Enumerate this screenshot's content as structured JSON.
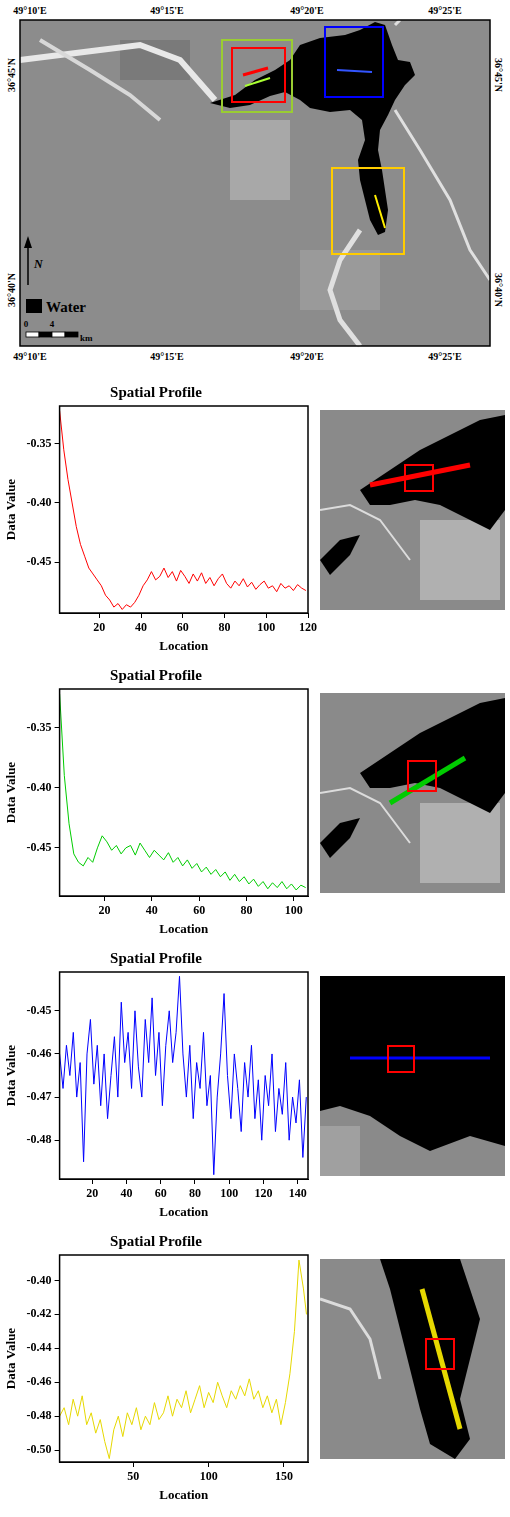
{
  "map": {
    "top_labels": [
      "49°10'E",
      "49°15'E",
      "49°20'E",
      "49°25'E"
    ],
    "bottom_labels": [
      "49°10'E",
      "49°15'E",
      "49°20'E",
      "49°25'E"
    ],
    "left_labels": [
      "36°45'N",
      "36°40'N"
    ],
    "right_labels": [
      "36°45'N",
      "36°40'N"
    ],
    "north": "N",
    "legend_label": "Water",
    "scale_ticks": [
      0,
      4
    ],
    "scale_unit": "km"
  },
  "chart_data": [
    {
      "type": "line",
      "title": "Spatial Profile",
      "x_label": "Location",
      "y_label": "Data Value",
      "color": "#ff0000",
      "grid": false,
      "xlim": [
        1,
        120
      ],
      "ylim": [
        -0.493,
        -0.318
      ],
      "xticks": [
        20,
        40,
        60,
        80,
        100,
        120
      ],
      "yticks": [
        -0.35,
        {
          "value": -0.4,
          "label": "-0.40"
        },
        -0.45
      ],
      "x": [
        1,
        3,
        5,
        7,
        9,
        11,
        13,
        15,
        17,
        19,
        21,
        23,
        25,
        27,
        29,
        31,
        33,
        35,
        37,
        39,
        41,
        43,
        45,
        47,
        49,
        51,
        53,
        55,
        57,
        59,
        61,
        63,
        65,
        67,
        69,
        71,
        73,
        75,
        77,
        79,
        81,
        83,
        85,
        87,
        89,
        91,
        93,
        95,
        97,
        99,
        101,
        103,
        105,
        107,
        109,
        111,
        113,
        115,
        117,
        119
      ],
      "values": [
        -0.322,
        -0.355,
        -0.38,
        -0.4,
        -0.42,
        -0.435,
        -0.445,
        -0.455,
        -0.46,
        -0.465,
        -0.47,
        -0.478,
        -0.482,
        -0.488,
        -0.485,
        -0.49,
        -0.486,
        -0.488,
        -0.484,
        -0.478,
        -0.47,
        -0.465,
        -0.458,
        -0.465,
        -0.462,
        -0.455,
        -0.463,
        -0.458,
        -0.466,
        -0.457,
        -0.462,
        -0.468,
        -0.46,
        -0.466,
        -0.459,
        -0.468,
        -0.463,
        -0.47,
        -0.464,
        -0.46,
        -0.468,
        -0.472,
        -0.466,
        -0.47,
        -0.464,
        -0.471,
        -0.467,
        -0.473,
        -0.469,
        -0.466,
        -0.472,
        -0.47,
        -0.475,
        -0.468,
        -0.472,
        -0.47,
        -0.474,
        -0.469,
        -0.472,
        -0.474
      ]
    },
    {
      "type": "line",
      "title": "Spatial Profile",
      "x_label": "Location",
      "y_label": "Data Value",
      "color": "#00cc00",
      "grid": false,
      "xlim": [
        1,
        106
      ],
      "ylim": [
        -0.49,
        -0.318
      ],
      "xticks": [
        20,
        40,
        60,
        80,
        100
      ],
      "yticks": [
        -0.35,
        {
          "value": -0.4,
          "label": "-0.40"
        },
        -0.45
      ],
      "x": [
        1,
        3,
        5,
        7,
        9,
        11,
        13,
        15,
        17,
        19,
        21,
        23,
        25,
        27,
        29,
        31,
        33,
        35,
        37,
        39,
        41,
        43,
        45,
        47,
        49,
        51,
        53,
        55,
        57,
        59,
        61,
        63,
        65,
        67,
        69,
        71,
        73,
        75,
        77,
        79,
        81,
        83,
        85,
        87,
        89,
        91,
        93,
        95,
        97,
        99,
        101,
        103,
        105
      ],
      "values": [
        -0.322,
        -0.39,
        -0.43,
        -0.455,
        -0.462,
        -0.465,
        -0.458,
        -0.462,
        -0.45,
        -0.44,
        -0.445,
        -0.452,
        -0.448,
        -0.455,
        -0.45,
        -0.448,
        -0.456,
        -0.446,
        -0.452,
        -0.458,
        -0.452,
        -0.456,
        -0.46,
        -0.454,
        -0.462,
        -0.458,
        -0.465,
        -0.46,
        -0.467,
        -0.463,
        -0.47,
        -0.466,
        -0.472,
        -0.468,
        -0.474,
        -0.47,
        -0.477,
        -0.472,
        -0.478,
        -0.474,
        -0.48,
        -0.476,
        -0.482,
        -0.478,
        -0.484,
        -0.479,
        -0.483,
        -0.478,
        -0.484,
        -0.48,
        -0.485,
        -0.481,
        -0.483
      ]
    },
    {
      "type": "line",
      "title": "Spatial Profile",
      "x_label": "Location",
      "y_label": "Data Value",
      "color": "#0000ff",
      "grid": false,
      "xlim": [
        1,
        146
      ],
      "ylim": [
        -0.489,
        -0.441
      ],
      "xticks": [
        20,
        40,
        60,
        80,
        100,
        120,
        140
      ],
      "yticks": [
        -0.45,
        -0.46,
        -0.47,
        -0.48
      ],
      "x": [
        1,
        3,
        5,
        7,
        9,
        11,
        13,
        15,
        17,
        19,
        21,
        23,
        25,
        27,
        29,
        31,
        33,
        35,
        37,
        39,
        41,
        43,
        45,
        47,
        49,
        51,
        53,
        55,
        57,
        59,
        61,
        63,
        65,
        67,
        69,
        71,
        73,
        75,
        77,
        79,
        81,
        83,
        85,
        87,
        89,
        91,
        93,
        95,
        97,
        99,
        101,
        103,
        105,
        107,
        109,
        111,
        113,
        115,
        117,
        119,
        121,
        123,
        125,
        127,
        129,
        131,
        133,
        135,
        137,
        139,
        141,
        143,
        145
      ],
      "values": [
        -0.46,
        -0.468,
        -0.458,
        -0.465,
        -0.455,
        -0.47,
        -0.462,
        -0.485,
        -0.46,
        -0.452,
        -0.467,
        -0.458,
        -0.472,
        -0.46,
        -0.475,
        -0.465,
        -0.456,
        -0.47,
        -0.448,
        -0.462,
        -0.455,
        -0.468,
        -0.45,
        -0.463,
        -0.47,
        -0.452,
        -0.462,
        -0.447,
        -0.465,
        -0.455,
        -0.472,
        -0.458,
        -0.45,
        -0.462,
        -0.455,
        -0.442,
        -0.46,
        -0.47,
        -0.458,
        -0.475,
        -0.462,
        -0.468,
        -0.455,
        -0.472,
        -0.465,
        -0.488,
        -0.47,
        -0.46,
        -0.446,
        -0.465,
        -0.475,
        -0.46,
        -0.468,
        -0.478,
        -0.462,
        -0.47,
        -0.458,
        -0.475,
        -0.466,
        -0.48,
        -0.465,
        -0.472,
        -0.46,
        -0.478,
        -0.468,
        -0.474,
        -0.462,
        -0.48,
        -0.47,
        -0.476,
        -0.466,
        -0.484,
        -0.47
      ]
    },
    {
      "type": "line",
      "title": "Spatial Profile",
      "x_label": "Location",
      "y_label": "Data Value",
      "color": "#e6d800",
      "grid": false,
      "xlim": [
        1,
        166
      ],
      "ylim": [
        -0.507,
        -0.385
      ],
      "xticks": [
        50,
        100,
        150
      ],
      "yticks": [
        {
          "value": -0.4,
          "label": "-0.40"
        },
        -0.42,
        -0.44,
        -0.46,
        -0.48,
        {
          "value": -0.5,
          "label": "-0.50"
        }
      ],
      "x": [
        1,
        4,
        7,
        10,
        13,
        16,
        19,
        22,
        25,
        28,
        31,
        34,
        37,
        40,
        43,
        46,
        49,
        52,
        55,
        58,
        61,
        64,
        67,
        70,
        73,
        76,
        79,
        82,
        85,
        88,
        91,
        94,
        97,
        100,
        103,
        106,
        109,
        112,
        115,
        118,
        121,
        124,
        127,
        130,
        133,
        136,
        139,
        142,
        145,
        148,
        151,
        154,
        157,
        160,
        163,
        165
      ],
      "values": [
        -0.48,
        -0.475,
        -0.485,
        -0.47,
        -0.48,
        -0.468,
        -0.485,
        -0.478,
        -0.49,
        -0.482,
        -0.495,
        -0.505,
        -0.488,
        -0.48,
        -0.492,
        -0.478,
        -0.485,
        -0.475,
        -0.488,
        -0.48,
        -0.485,
        -0.472,
        -0.482,
        -0.478,
        -0.468,
        -0.48,
        -0.47,
        -0.475,
        -0.465,
        -0.478,
        -0.47,
        -0.462,
        -0.475,
        -0.466,
        -0.472,
        -0.46,
        -0.468,
        -0.475,
        -0.465,
        -0.47,
        -0.462,
        -0.468,
        -0.458,
        -0.47,
        -0.465,
        -0.475,
        -0.468,
        -0.478,
        -0.47,
        -0.485,
        -0.472,
        -0.455,
        -0.43,
        -0.388,
        -0.405,
        -0.42
      ]
    }
  ]
}
